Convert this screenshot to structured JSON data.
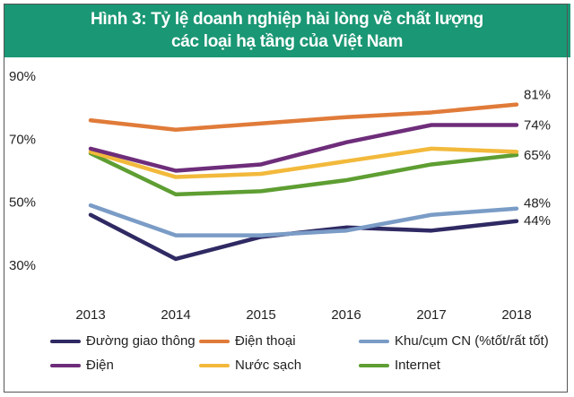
{
  "chart_data": {
    "type": "line",
    "title": "Hình 3: Tỷ lệ doanh nghiệp hài lòng về chất lượng các loại hạ tầng của Việt Nam",
    "title_lines": [
      "Hình 3: Tỷ lệ doanh nghiệp hài lòng về chất lượng",
      "các loại hạ tầng của Việt Nam"
    ],
    "x": [
      "2013",
      "2014",
      "2015",
      "2016",
      "2017",
      "2018"
    ],
    "ylim": [
      30,
      90
    ],
    "yticks": [
      "30%",
      "50%",
      "70%",
      "90%"
    ],
    "grid": false,
    "legend_placement": "bottom",
    "series": [
      {
        "name": "Đường giao thông",
        "color": "#2f2a63",
        "values": [
          46,
          32,
          39,
          42,
          41,
          44
        ],
        "end_label": "44%"
      },
      {
        "name": "Điện thoại",
        "color": "#e07b39",
        "values": [
          76,
          73,
          75,
          77,
          78.5,
          81
        ],
        "end_label": "81%"
      },
      {
        "name": "Khu/cụm CN (%tốt/rất tốt)",
        "color": "#7a9cc6",
        "values": [
          49,
          39.5,
          39.5,
          41,
          46,
          48
        ],
        "end_label": "48%"
      },
      {
        "name": "Điện",
        "color": "#6e2d7a",
        "values": [
          67,
          60,
          62,
          69,
          74.5,
          74.5
        ],
        "end_label": "74%"
      },
      {
        "name": "Nước sạch",
        "color": "#f2b93b",
        "values": [
          66,
          58,
          59,
          63,
          67,
          66
        ],
        "end_label": ""
      },
      {
        "name": "Internet",
        "color": "#5e9e32",
        "values": [
          65.5,
          52.5,
          53.5,
          57,
          62,
          65
        ],
        "end_label": "65%"
      }
    ]
  }
}
